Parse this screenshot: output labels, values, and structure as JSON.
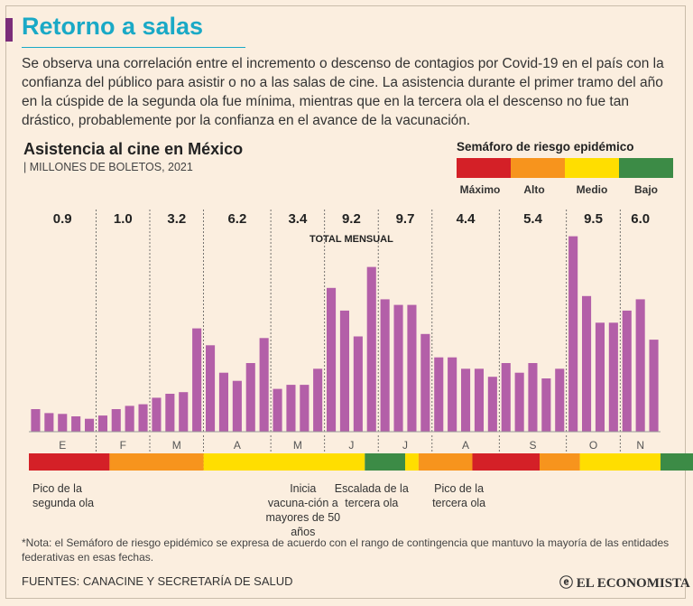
{
  "header": {
    "title": "Retorno a salas",
    "intro": "Se observa una correlación entre el incremento o descenso de contagios por Covid-19 en el país con la confianza del público para asistir o no a las salas de cine. La asistencia durante el primer tramo del año en la cúspide de la segunda ola fue mínima, mientras que en la tercera ola el descenso no fue tan drástico, probablemente por la confianza en el avance de la vacunación."
  },
  "legend": {
    "title": "Semáforo de riesgo epidémico",
    "levels": [
      {
        "label": "Máximo",
        "color": "#d42027"
      },
      {
        "label": "Alto",
        "color": "#f7941d"
      },
      {
        "label": "Medio",
        "color": "#ffde00"
      },
      {
        "label": "Bajo",
        "color": "#3c8b46"
      }
    ]
  },
  "chart_data": {
    "type": "bar",
    "title": "Asistencia al cine en México",
    "subtitle": "MILLONES DE BOLETOS, 2021",
    "total_label": "TOTAL MENSUAL",
    "bar_color": "#b35fa8",
    "months": [
      {
        "label": "E",
        "total": "0.9",
        "weekly": [
          0.28,
          0.23,
          0.22,
          0.19,
          0.16
        ]
      },
      {
        "label": "F",
        "total": "1.0",
        "weekly": [
          0.2,
          0.28,
          0.32,
          0.34
        ]
      },
      {
        "label": "M",
        "total": "3.2",
        "weekly": [
          0.42,
          0.47,
          0.49,
          1.28
        ]
      },
      {
        "label": "A",
        "total": "6.2",
        "weekly": [
          1.07,
          0.73,
          0.63,
          0.85,
          1.16
        ]
      },
      {
        "label": "M",
        "total": "3.4",
        "weekly": [
          0.53,
          0.58,
          0.58,
          0.78
        ]
      },
      {
        "label": "J",
        "total": "9.2",
        "weekly": [
          1.78,
          1.5,
          1.18,
          2.04
        ]
      },
      {
        "label": "J",
        "total": "9.7",
        "weekly": [
          1.64,
          1.57,
          1.57,
          1.21
        ]
      },
      {
        "label": "A",
        "total": "4.4",
        "weekly": [
          0.92,
          0.92,
          0.78,
          0.78,
          0.68
        ]
      },
      {
        "label": "S",
        "total": "5.4",
        "weekly": [
          0.85,
          0.73,
          0.85,
          0.66,
          0.78
        ]
      },
      {
        "label": "O",
        "total": "9.5",
        "weekly": [
          2.42,
          1.68,
          1.35,
          1.35
        ]
      },
      {
        "label": "N",
        "total": "6.0",
        "weekly": [
          1.5,
          1.64,
          1.14
        ]
      }
    ],
    "risk_strip": [
      {
        "level": "Máximo",
        "weeks": 6
      },
      {
        "level": "Alto",
        "weeks": 7
      },
      {
        "level": "Medio",
        "weeks": 12
      },
      {
        "level": "Bajo",
        "weeks": 3
      },
      {
        "level": "Medio",
        "weeks": 1
      },
      {
        "level": "Alto",
        "weeks": 4
      },
      {
        "level": "Máximo",
        "weeks": 5
      },
      {
        "level": "Alto",
        "weeks": 3
      },
      {
        "level": "Medio",
        "weeks": 6
      },
      {
        "level": "Bajo",
        "weeks": 8
      }
    ],
    "annotations": [
      {
        "text": "Pico de la segunda ola",
        "week": 0,
        "align": "start"
      },
      {
        "text": "Inicia vacuna-ción a mayores de 50 años",
        "week": 20.4,
        "align": "middle"
      },
      {
        "text": "Escalada de la tercera ola",
        "week": 25.5,
        "align": "middle"
      },
      {
        "text": "Pico de la tercera ola",
        "week": 32,
        "align": "middle"
      }
    ]
  },
  "footer": {
    "note": "*Nota: el Semáforo de riesgo epidémico se expresa de acuerdo con el rango de contingencia que mantuvo  la mayoría de las entidades federativas en esas fechas.",
    "sources": "FUENTES: CANACINE Y SECRETARÍA DE SALUD",
    "brand": "EL ECONOMISTA"
  }
}
